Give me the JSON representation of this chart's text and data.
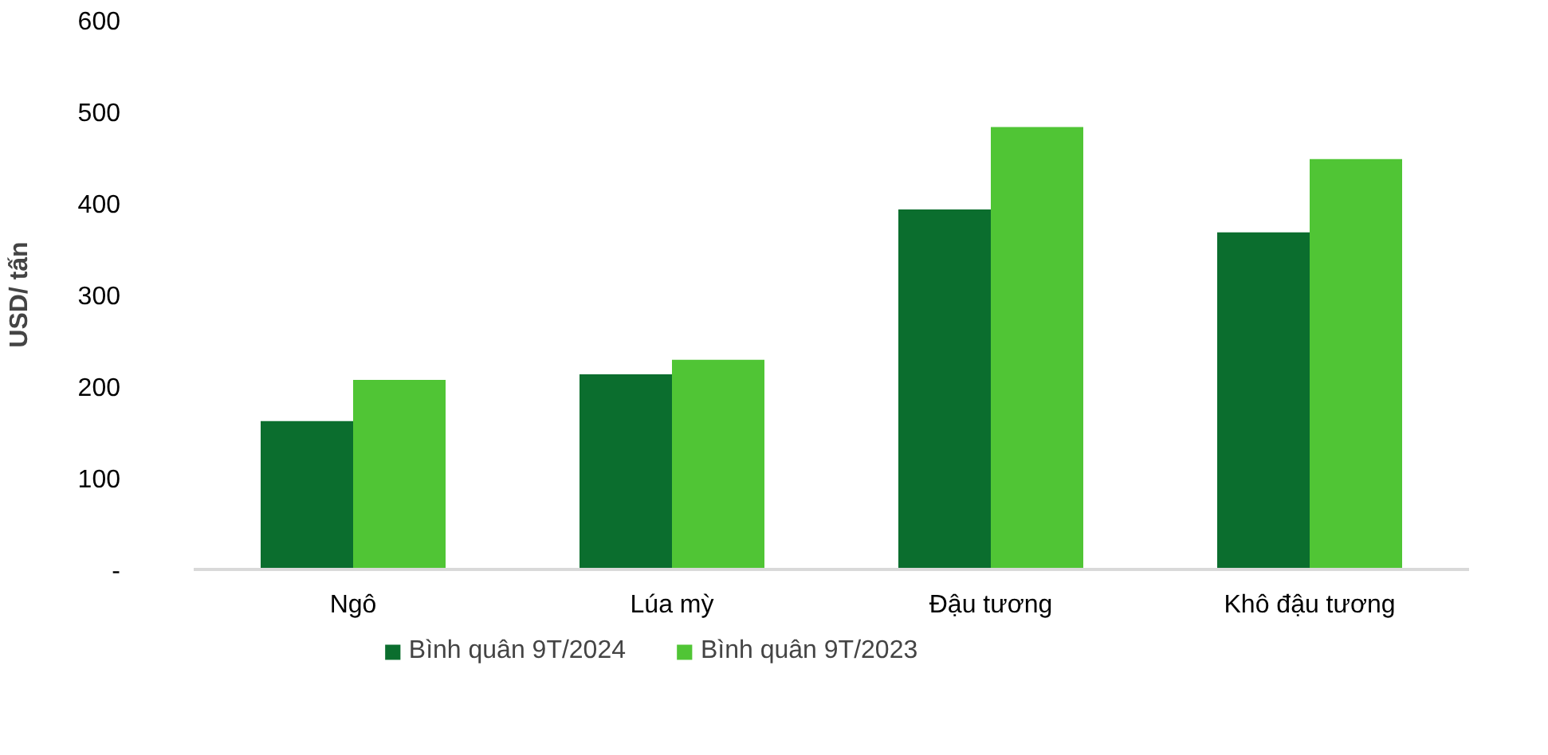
{
  "chart_data": {
    "type": "bar",
    "ylabel": "USD/ tấn",
    "categories": [
      "Ngô",
      "Lúa mỳ",
      "Đậu tương",
      "Khô đậu tương"
    ],
    "series": [
      {
        "name": "Bình quân 9T/2024",
        "color": "#0b6e2e",
        "values": [
          162,
          213,
          393,
          368
        ]
      },
      {
        "name": "Bình quân 9T/2023",
        "color": "#50c535",
        "values": [
          207,
          229,
          483,
          448
        ]
      }
    ],
    "ylim": [
      0,
      600
    ],
    "yticks": [
      {
        "value": 0,
        "label": "-"
      },
      100,
      200,
      300,
      400,
      500,
      600
    ],
    "grid": false,
    "legend": "bottom"
  }
}
